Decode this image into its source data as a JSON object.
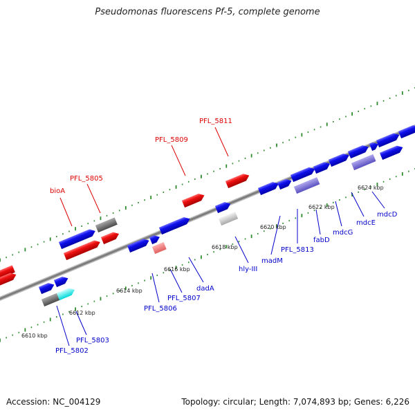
{
  "title": "Pseudomonas fluorescens Pf-5, complete genome",
  "footer": {
    "accession": "Accession: NC_004129",
    "topology": "Topology: circular; Length: 7,074,893 bp; Genes: 6,226"
  },
  "colors": {
    "forward_cds": "#0000ee",
    "rna_or_other": "#ee0000",
    "inner_label": "#0000cc",
    "outer_label": "#dd0000",
    "backbone": "#8a8a8a",
    "tick_dot": "#2e8b2e"
  },
  "scale_labels": [
    "6610 kbp",
    "6612 kbp",
    "6614 kbp",
    "6616 kbp",
    "6618 kbp",
    "6620 kbp",
    "6622 kbp",
    "6624 kbp"
  ],
  "outer_labels": [
    "bioA",
    "PFL_5805",
    "PFL_5809",
    "PFL_5811"
  ],
  "inner_labels": [
    "PFL_5802",
    "PFL_5803",
    "PFL_5806",
    "PFL_5807",
    "dadA",
    "hly-III",
    "madM",
    "PFL_5813",
    "fabD",
    "mdcG",
    "mdcE",
    "mdcD"
  ]
}
